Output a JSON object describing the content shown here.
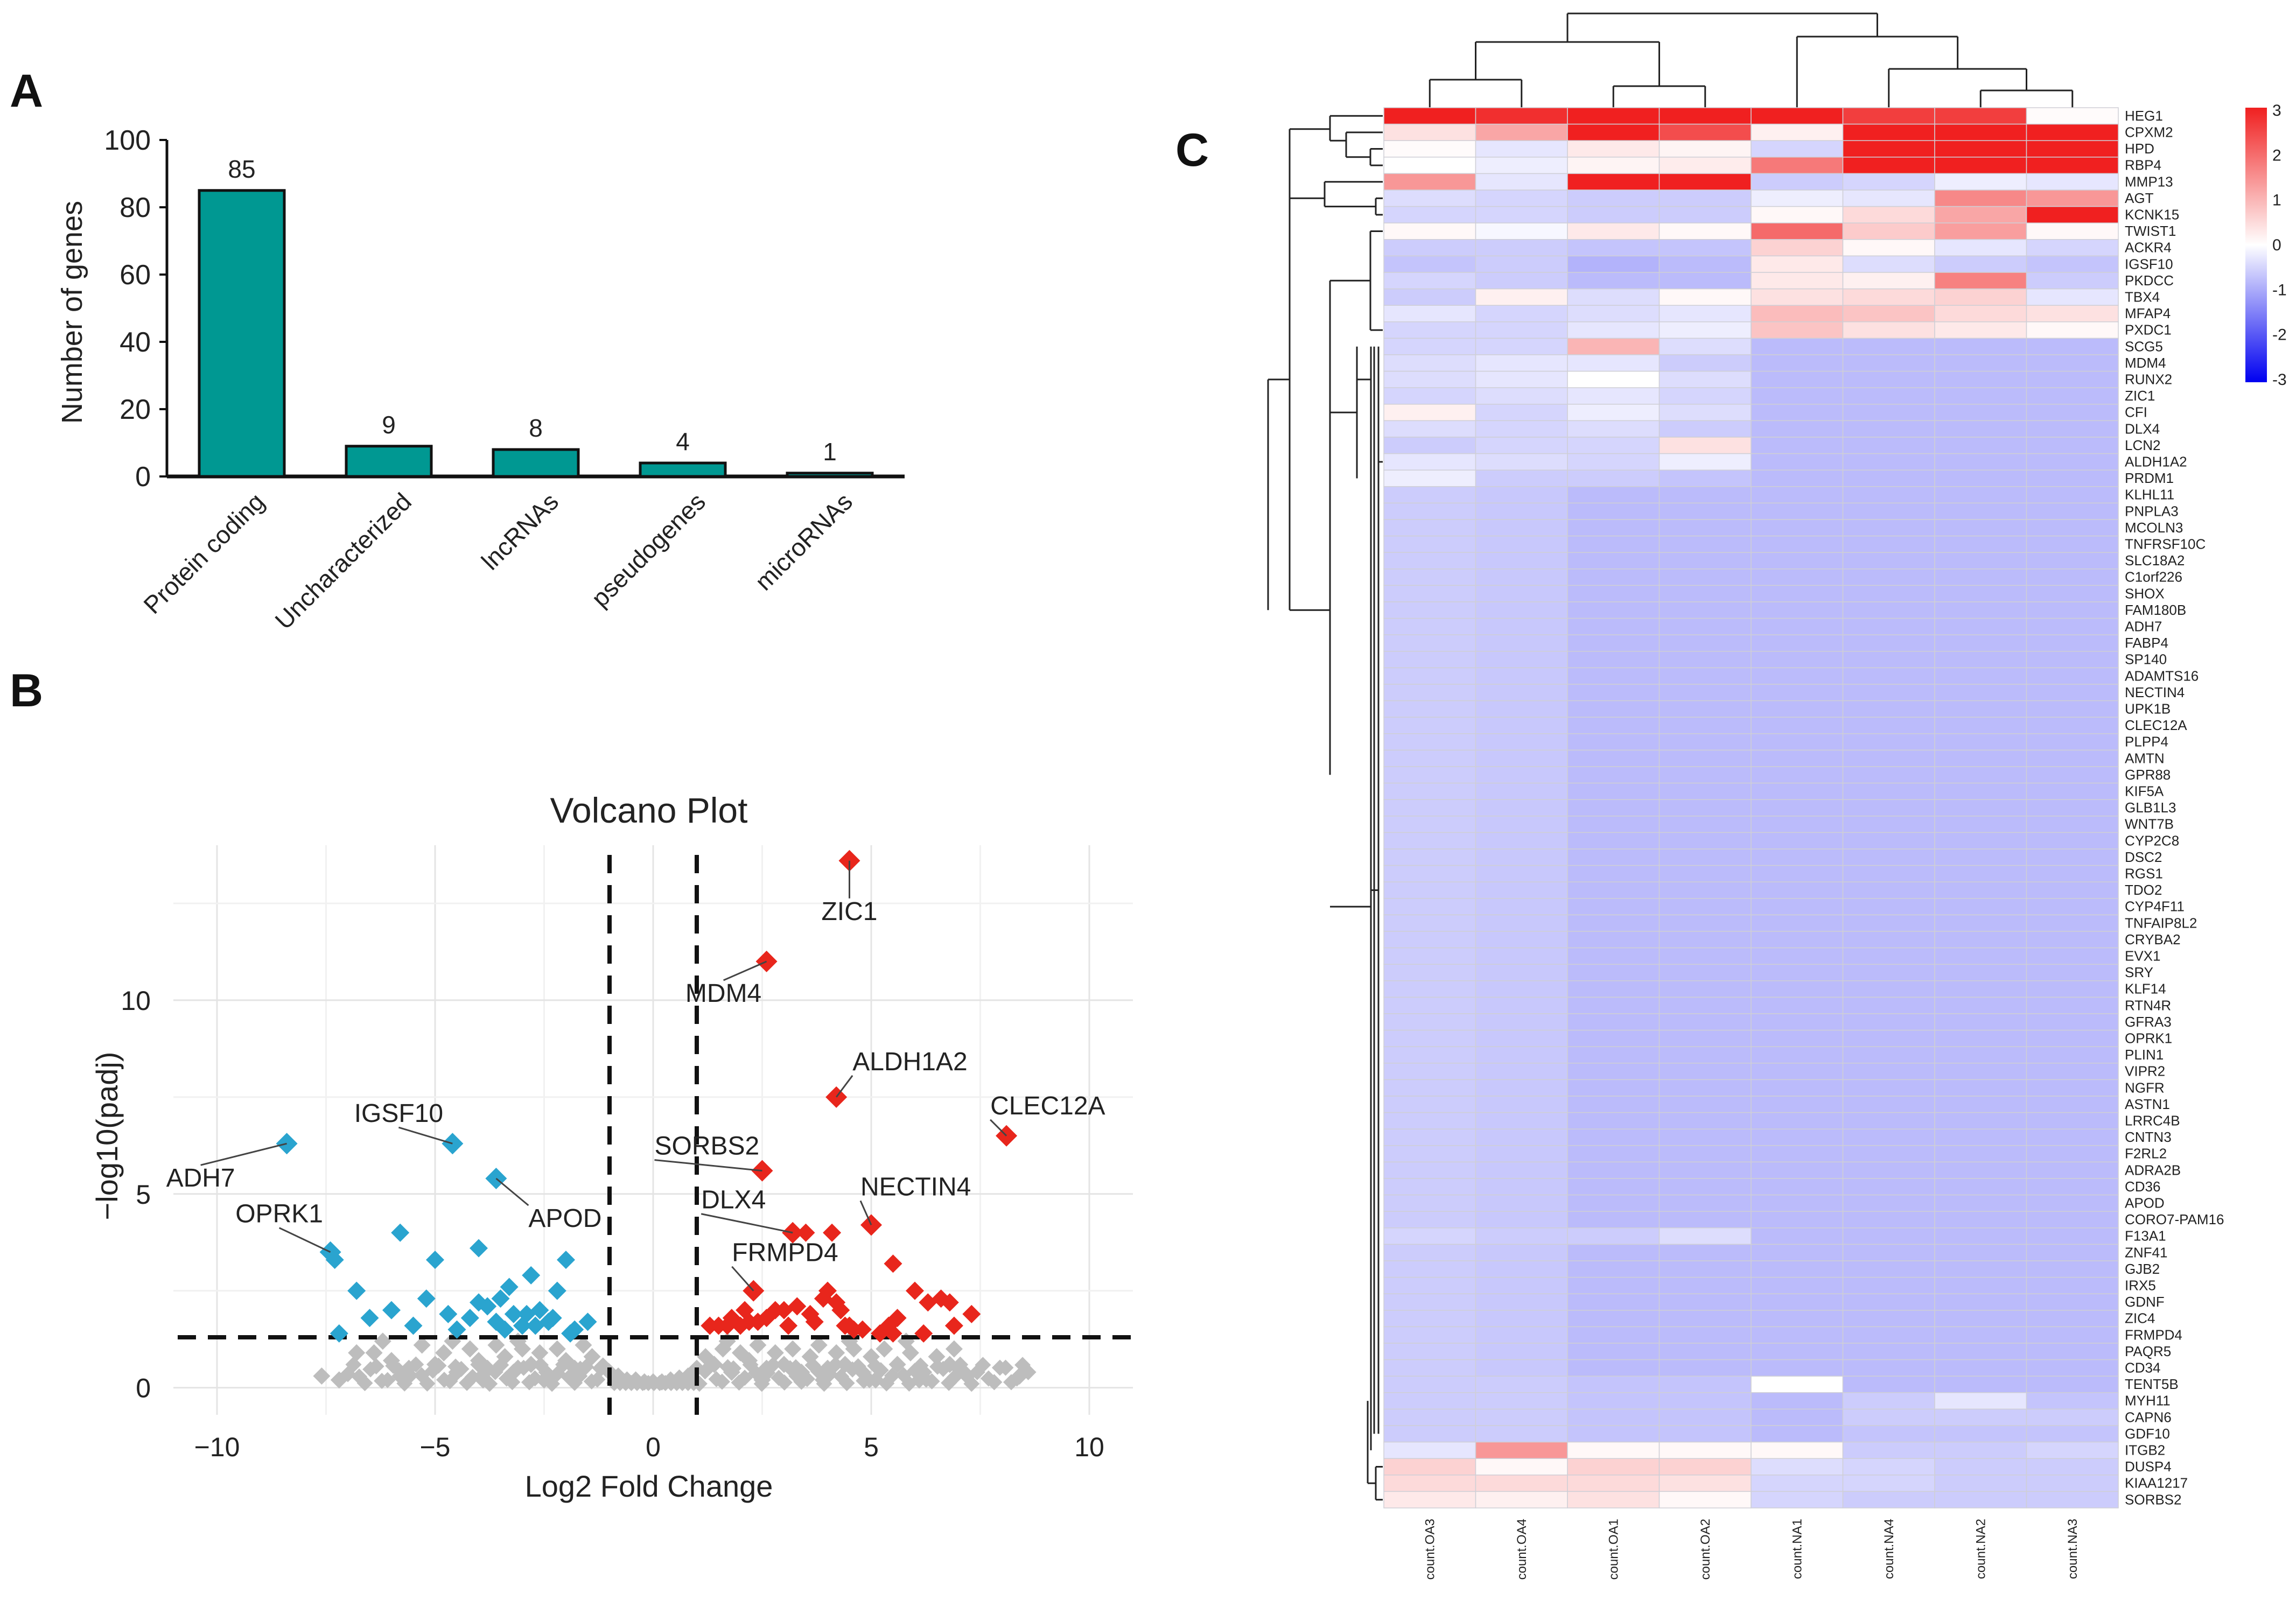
{
  "chart_data": [
    {
      "panel": "A",
      "type": "bar",
      "title": "",
      "ylabel": "Number of genes",
      "xlabel": "",
      "categories": [
        "Protein coding",
        "Uncharacterized",
        "lncRNAs",
        "pseudogenes",
        "microRNAs"
      ],
      "values": [
        85,
        9,
        8,
        4,
        1
      ],
      "ylim": [
        0,
        100
      ],
      "yticks": [
        0,
        20,
        40,
        60,
        80,
        100
      ],
      "bar_color": "#009892"
    },
    {
      "panel": "B",
      "type": "scatter",
      "title": "Volcano Plot",
      "xlabel": "Log2 Fold Change",
      "ylabel": "−log10(padj)",
      "xlim": [
        -11,
        11
      ],
      "ylim": [
        -0.7,
        14
      ],
      "xticks": [
        -10,
        -5,
        0,
        5,
        10
      ],
      "yticks": [
        0,
        5,
        10
      ],
      "x_tick_labels": [
        "−10",
        "−5",
        "0",
        "5",
        "10"
      ],
      "thresholds": {
        "log2fc": [
          -1,
          1
        ],
        "neglog10padj": 1.3
      },
      "colors": {
        "down": "#2aa4cf",
        "up": "#e8261c",
        "ns": "#bdbdbd"
      },
      "labeled_points": [
        {
          "gene": "ZIC1",
          "x": 4.5,
          "y": 13.6,
          "group": "up"
        },
        {
          "gene": "MDM4",
          "x": 2.6,
          "y": 11.0,
          "group": "up"
        },
        {
          "gene": "ALDH1A2",
          "x": 4.2,
          "y": 7.5,
          "group": "up"
        },
        {
          "gene": "CLEC12A",
          "x": 8.1,
          "y": 6.5,
          "group": "up"
        },
        {
          "gene": "SORBS2",
          "x": 2.5,
          "y": 5.6,
          "group": "up"
        },
        {
          "gene": "DLX4",
          "x": 3.2,
          "y": 4.0,
          "group": "up"
        },
        {
          "gene": "NECTIN4",
          "x": 5.0,
          "y": 4.2,
          "group": "up"
        },
        {
          "gene": "FRMPD4",
          "x": 2.3,
          "y": 2.5,
          "group": "up"
        },
        {
          "gene": "ADH7",
          "x": -8.4,
          "y": 6.3,
          "group": "down"
        },
        {
          "gene": "IGSF10",
          "x": -4.6,
          "y": 6.3,
          "group": "down"
        },
        {
          "gene": "APOD",
          "x": -3.6,
          "y": 5.4,
          "group": "down"
        },
        {
          "gene": "OPRK1",
          "x": -7.4,
          "y": 3.5,
          "group": "down"
        }
      ],
      "up_points": [
        [
          3.5,
          4.0
        ],
        [
          4.1,
          4.0
        ],
        [
          5.5,
          3.2
        ],
        [
          6.0,
          2.5
        ],
        [
          6.6,
          2.3
        ],
        [
          6.8,
          2.2
        ],
        [
          7.3,
          1.9
        ],
        [
          6.9,
          1.6
        ],
        [
          2.1,
          2.0
        ],
        [
          2.4,
          1.7
        ],
        [
          2.8,
          2.0
        ],
        [
          3.3,
          2.1
        ],
        [
          3.6,
          1.9
        ],
        [
          3.9,
          2.3
        ],
        [
          4.3,
          2.0
        ],
        [
          4.6,
          1.5
        ],
        [
          5.2,
          1.4
        ],
        [
          5.6,
          1.8
        ],
        [
          1.3,
          1.6
        ],
        [
          1.7,
          1.6
        ],
        [
          2.6,
          1.8
        ],
        [
          3.1,
          1.6
        ],
        [
          4.0,
          2.5
        ],
        [
          4.4,
          1.6
        ],
        [
          5.5,
          1.4
        ],
        [
          6.2,
          1.4
        ],
        [
          1.5,
          1.6
        ],
        [
          1.8,
          1.8
        ],
        [
          2.2,
          1.7
        ],
        [
          3.7,
          1.7
        ],
        [
          4.2,
          2.2
        ],
        [
          4.8,
          1.5
        ],
        [
          5.4,
          1.6
        ],
        [
          6.3,
          2.2
        ],
        [
          2.0,
          1.6
        ],
        [
          3.0,
          2.0
        ],
        [
          4.5,
          1.6
        ]
      ],
      "down_points": [
        [
          -7.3,
          3.3
        ],
        [
          -5.8,
          4.0
        ],
        [
          -4.0,
          3.6
        ],
        [
          -6.8,
          2.5
        ],
        [
          -6.0,
          2.0
        ],
        [
          -5.2,
          2.3
        ],
        [
          -4.7,
          1.9
        ],
        [
          -4.2,
          1.8
        ],
        [
          -3.6,
          1.7
        ],
        [
          -3.3,
          2.6
        ],
        [
          -2.8,
          2.9
        ],
        [
          -2.0,
          3.3
        ],
        [
          -2.6,
          2.0
        ],
        [
          -2.4,
          1.7
        ],
        [
          -1.8,
          1.5
        ],
        [
          -3.0,
          1.6
        ],
        [
          -3.5,
          2.3
        ],
        [
          -2.3,
          1.8
        ],
        [
          -1.5,
          1.7
        ],
        [
          -2.9,
          1.9
        ],
        [
          -3.8,
          2.1
        ],
        [
          -4.5,
          1.5
        ],
        [
          -5.0,
          3.3
        ],
        [
          -7.2,
          1.4
        ],
        [
          -6.5,
          1.8
        ],
        [
          -5.5,
          1.6
        ],
        [
          -2.2,
          2.5
        ],
        [
          -1.9,
          1.4
        ],
        [
          -3.2,
          1.9
        ],
        [
          -2.7,
          1.6
        ],
        [
          -4.0,
          2.2
        ],
        [
          -3.4,
          1.5
        ]
      ],
      "ns_points": [
        [
          -7.6,
          0.3
        ],
        [
          -7.2,
          0.2
        ],
        [
          -6.4,
          0.9
        ],
        [
          -6.0,
          0.7
        ],
        [
          -5.6,
          0.5
        ],
        [
          -5.3,
          1.1
        ],
        [
          -5.0,
          0.6
        ],
        [
          -4.8,
          0.9
        ],
        [
          -4.5,
          0.4
        ],
        [
          -4.2,
          1.0
        ],
        [
          -4.0,
          0.7
        ],
        [
          -3.8,
          0.5
        ],
        [
          -3.6,
          1.1
        ],
        [
          -3.4,
          0.8
        ],
        [
          -3.2,
          0.4
        ],
        [
          -3.0,
          1.0
        ],
        [
          -2.8,
          0.6
        ],
        [
          -2.6,
          0.9
        ],
        [
          -2.4,
          0.3
        ],
        [
          -2.2,
          1.0
        ],
        [
          -2.0,
          0.7
        ],
        [
          -1.8,
          0.5
        ],
        [
          -1.6,
          1.1
        ],
        [
          -1.4,
          0.8
        ],
        [
          -1.2,
          0.5
        ],
        [
          -1.0,
          0.4
        ],
        [
          -0.8,
          0.3
        ],
        [
          -0.6,
          0.2
        ],
        [
          -0.4,
          0.2
        ],
        [
          -0.2,
          0.15
        ],
        [
          0.0,
          0.15
        ],
        [
          0.2,
          0.15
        ],
        [
          0.4,
          0.2
        ],
        [
          0.6,
          0.25
        ],
        [
          0.8,
          0.3
        ],
        [
          1.0,
          0.5
        ],
        [
          1.2,
          0.8
        ],
        [
          1.4,
          0.6
        ],
        [
          1.6,
          1.0
        ],
        [
          1.8,
          0.4
        ],
        [
          2.0,
          0.9
        ],
        [
          2.2,
          0.7
        ],
        [
          2.4,
          1.1
        ],
        [
          2.6,
          0.5
        ],
        [
          2.8,
          0.9
        ],
        [
          3.0,
          0.6
        ],
        [
          3.2,
          1.0
        ],
        [
          3.4,
          0.4
        ],
        [
          3.6,
          0.8
        ],
        [
          3.8,
          1.1
        ],
        [
          4.0,
          0.5
        ],
        [
          4.2,
          0.9
        ],
        [
          4.4,
          0.6
        ],
        [
          4.6,
          1.0
        ],
        [
          4.8,
          0.4
        ],
        [
          5.0,
          0.8
        ],
        [
          5.3,
          1.0
        ],
        [
          5.6,
          0.6
        ],
        [
          5.9,
          0.9
        ],
        [
          6.2,
          0.4
        ],
        [
          6.5,
          0.8
        ],
        [
          6.8,
          0.6
        ],
        [
          7.2,
          0.3
        ],
        [
          8.4,
          0.3
        ],
        [
          -6.8,
          0.9
        ],
        [
          -6.2,
          1.2
        ],
        [
          -5.8,
          0.3
        ],
        [
          -4.6,
          1.2
        ],
        [
          -3.9,
          0.2
        ],
        [
          -3.1,
          1.2
        ],
        [
          -2.5,
          0.2
        ],
        [
          -1.7,
          0.3
        ],
        [
          1.7,
          1.2
        ],
        [
          2.5,
          0.2
        ],
        [
          3.3,
          0.3
        ],
        [
          3.9,
          0.2
        ],
        [
          4.5,
          1.2
        ],
        [
          5.1,
          0.2
        ],
        [
          5.8,
          1.2
        ],
        [
          6.1,
          0.2
        ],
        [
          6.9,
          1.0
        ],
        [
          7.0,
          0.5
        ]
      ]
    },
    {
      "panel": "C",
      "type": "heatmap",
      "title": "",
      "columns": [
        "count.OA3",
        "count.OA4",
        "count.OA1",
        "count.OA2",
        "count.NA1",
        "count.NA4",
        "count.NA2",
        "count.NA3"
      ],
      "rows": [
        "HEG1",
        "CPXM2",
        "HPD",
        "RBP4",
        "MMP13",
        "AGT",
        "KCNK15",
        "TWIST1",
        "ACKR4",
        "IGSF10",
        "PKDCC",
        "TBX4",
        "MFAP4",
        "PXDC1",
        "SCG5",
        "MDM4",
        "RUNX2",
        "ZIC1",
        "CFI",
        "DLX4",
        "LCN2",
        "ALDH1A2",
        "PRDM1",
        "KLHL11",
        "PNPLA3",
        "MCOLN3",
        "TNFRSF10C",
        "SLC18A2",
        "C1orf226",
        "SHOX",
        "FAM180B",
        "ADH7",
        "FABP4",
        "SP140",
        "ADAMTS16",
        "NECTIN4",
        "UPK1B",
        "CLEC12A",
        "PLPP4",
        "AMTN",
        "GPR88",
        "KIF5A",
        "GLB1L3",
        "WNT7B",
        "CYP2C8",
        "DSC2",
        "RGS1",
        "TDO2",
        "CYP4F11",
        "TNFAIP8L2",
        "CRYBA2",
        "EVX1",
        "SRY",
        "KLF14",
        "RTN4R",
        "GFRA3",
        "OPRK1",
        "PLIN1",
        "VIPR2",
        "NGFR",
        "ASTN1",
        "LRRC4B",
        "CNTN3",
        "F2RL2",
        "ADRA2B",
        "CD36",
        "APOD",
        "CORO7-PAM16",
        "F13A1",
        "ZNF41",
        "GJB2",
        "IRX5",
        "GDNF",
        "ZIC4",
        "FRMPD4",
        "PAQR5",
        "CD34",
        "TENT5B",
        "MYH11",
        "CAPN6",
        "GDF10",
        "ITGB2",
        "DUSP4",
        "KIAA1217",
        "SORBS2"
      ],
      "top_values": [
        [
          3.0,
          2.8,
          3.0,
          3.0,
          3.0,
          2.6,
          2.6,
          0.05
        ],
        [
          0.4,
          1.2,
          3.0,
          2.4,
          0.2,
          3.0,
          3.0,
          3.0
        ],
        [
          0.05,
          -0.3,
          0.3,
          0.15,
          -0.5,
          3.0,
          3.0,
          3.0
        ],
        [
          0.0,
          -0.2,
          0.15,
          0.25,
          1.8,
          3.0,
          3.0,
          3.0
        ],
        [
          1.4,
          -0.3,
          3.0,
          3.0,
          -0.6,
          -0.5,
          -0.2,
          -0.3
        ],
        [
          -0.4,
          -0.5,
          -0.6,
          -0.6,
          -0.2,
          -0.3,
          1.6,
          1.4
        ],
        [
          -0.5,
          -0.5,
          -0.6,
          -0.6,
          0.1,
          0.5,
          1.2,
          3.0
        ],
        [
          0.1,
          -0.1,
          0.3,
          0.1,
          2.0,
          0.7,
          1.3,
          0.1
        ],
        [
          -0.6,
          -0.6,
          -0.7,
          -0.7,
          0.6,
          0.1,
          -0.3,
          -0.5
        ],
        [
          -0.7,
          -0.6,
          -0.9,
          -0.8,
          0.3,
          -0.4,
          -0.6,
          -0.7
        ],
        [
          -0.5,
          -0.6,
          -0.8,
          -0.8,
          0.3,
          0.2,
          1.7,
          -0.6
        ],
        [
          -0.6,
          0.2,
          -0.4,
          0.1,
          0.4,
          0.5,
          0.6,
          -0.3
        ],
        [
          -0.3,
          -0.5,
          -0.4,
          -0.3,
          0.9,
          0.8,
          0.5,
          0.4
        ],
        [
          -0.5,
          -0.5,
          -0.3,
          -0.2,
          0.8,
          0.4,
          0.3,
          0.1
        ],
        [
          -0.5,
          -0.5,
          1.0,
          -0.4,
          -0.8,
          -0.8,
          -0.8,
          -0.8
        ],
        [
          -0.4,
          -0.3,
          -0.3,
          -0.6,
          -0.8,
          -0.8,
          -0.8,
          -0.8
        ],
        [
          -0.4,
          -0.3,
          0.0,
          -0.4,
          -0.8,
          -0.8,
          -0.8,
          -0.8
        ],
        [
          -0.5,
          -0.4,
          -0.3,
          -0.5,
          -0.8,
          -0.8,
          -0.8,
          -0.8
        ],
        [
          0.2,
          -0.5,
          -0.2,
          -0.4,
          -0.8,
          -0.8,
          -0.8,
          -0.8
        ],
        [
          -0.4,
          -0.5,
          -0.4,
          -0.6,
          -0.8,
          -0.8,
          -0.8,
          -0.8
        ],
        [
          -0.6,
          -0.5,
          -0.5,
          0.4,
          -0.8,
          -0.8,
          -0.8,
          -0.8
        ],
        [
          -0.3,
          -0.4,
          -0.5,
          -0.2,
          -0.8,
          -0.8,
          -0.8,
          -0.8
        ],
        [
          -0.2,
          -0.6,
          -0.6,
          -0.7,
          -0.8,
          -0.8,
          -0.8,
          -0.8
        ]
      ],
      "default_values": [
        -0.6,
        -0.65,
        -0.8,
        -0.8,
        -0.8,
        -0.8,
        -0.8,
        -0.8
      ],
      "bottom_values": {
        "F13A1": [
          -0.5,
          -0.6,
          -0.6,
          -0.4,
          -0.8,
          -0.8,
          -0.8,
          -0.8
        ],
        "TENT5B": [
          -0.6,
          -0.6,
          -0.7,
          -0.7,
          0.0,
          -0.8,
          -0.8,
          -0.8
        ],
        "MYH11": [
          -0.6,
          -0.6,
          -0.7,
          -0.7,
          -0.8,
          -0.6,
          -0.3,
          -0.7
        ],
        "CAPN6": [
          -0.6,
          -0.6,
          -0.7,
          -0.7,
          -0.8,
          -0.6,
          -0.6,
          -0.6
        ],
        "GDF10": [
          -0.6,
          -0.6,
          -0.7,
          -0.7,
          -0.8,
          -0.7,
          -0.7,
          -0.7
        ],
        "ITGB2": [
          -0.3,
          1.4,
          0.1,
          0.1,
          0.1,
          -0.6,
          -0.6,
          -0.5
        ],
        "DUSP4": [
          0.6,
          0.1,
          0.6,
          0.6,
          -0.4,
          -0.5,
          -0.6,
          -0.6
        ],
        "KIAA1217": [
          0.5,
          0.5,
          0.5,
          0.4,
          -0.5,
          -0.5,
          -0.6,
          -0.6
        ],
        "SORBS2": [
          0.3,
          0.2,
          0.4,
          0.1,
          -0.5,
          -0.6,
          -0.6,
          -0.6
        ]
      },
      "colorbar_ticks": [
        3,
        2,
        1,
        0,
        -1,
        -2,
        -3
      ],
      "colorbar_labels": [
        "3",
        "2",
        "1",
        "0",
        "-1",
        "-2",
        "-3"
      ],
      "colorscale": {
        "low": "#0000f0",
        "mid": "#ffffff",
        "high": "#f02020"
      }
    }
  ]
}
